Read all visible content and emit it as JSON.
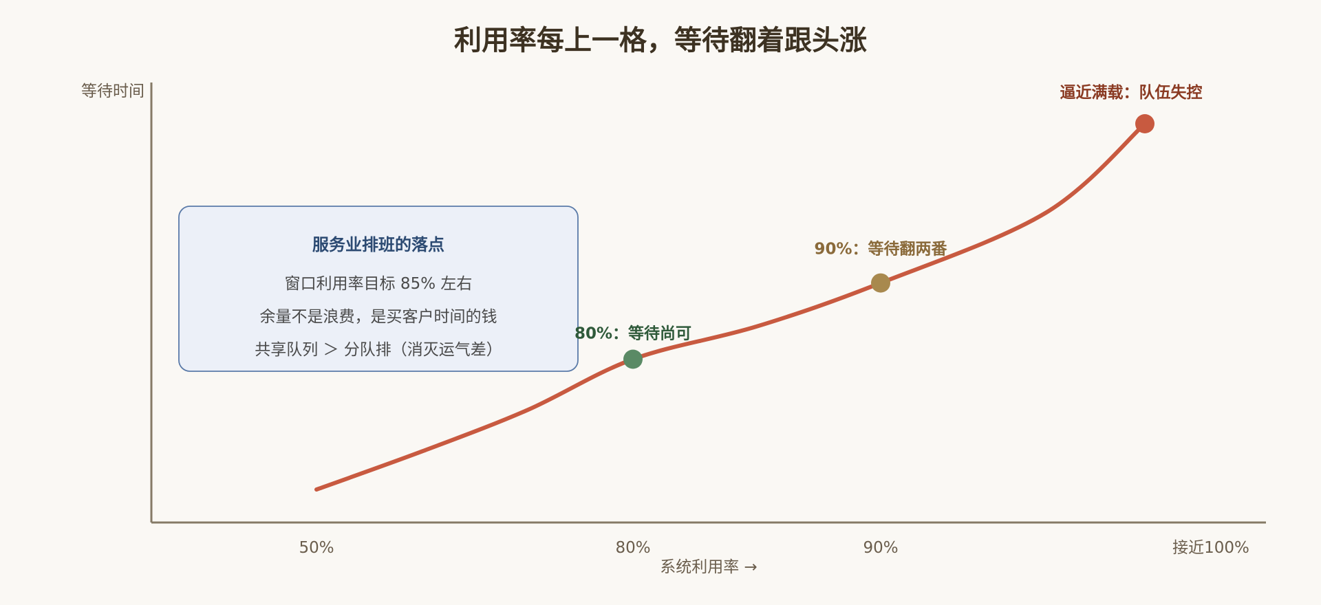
{
  "chart_data": {
    "type": "line",
    "title": "利用率每上一格，等待翻着跟头涨",
    "xlabel": "系统利用率 →",
    "ylabel": "等待时间",
    "x_ticks": [
      "50%",
      "80%",
      "90%",
      "接近100%"
    ],
    "curve_x": [
      50,
      60,
      70,
      80,
      85,
      90,
      95,
      98
    ],
    "curve_y": [
      1.0,
      1.5,
      2.33,
      4.0,
      5.67,
      9.0,
      19.0,
      49.0
    ],
    "markers": [
      {
        "x": 80,
        "y": 4.0,
        "label": "80%：等待尚可",
        "color": "#5a8a65",
        "label_color": "#2f5a3a"
      },
      {
        "x": 90,
        "y": 9.0,
        "label": "90%：等待翻两番",
        "color": "#a8894e",
        "label_color": "#8a6a3a"
      },
      {
        "x": 98,
        "y": 49.0,
        "label": "逼近满载：队伍失控",
        "color": "#c85a40",
        "label_color": "#8a3a22"
      }
    ],
    "line_color": "#c85a40",
    "axis_color": "#857a66",
    "grid": false
  },
  "callout": {
    "title": "服务业排班的落点",
    "lines": [
      "窗口利用率目标 85% 左右",
      "余量不是浪费，是买客户时间的钱",
      "共享队列 ＞ 分队排（消灭运气差）"
    ],
    "border_color": "#5a7aa8",
    "fill_color": "#ecf0f8"
  }
}
